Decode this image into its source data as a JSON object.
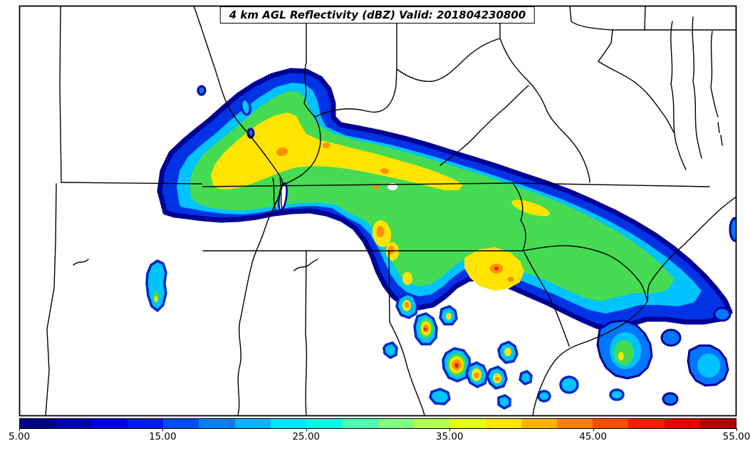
{
  "title": "4 km AGL Reflectivity (dBZ) Valid: 201804230800",
  "colorbar": {
    "min": 5.0,
    "max": 55.0,
    "units": "dBZ",
    "tick_labels": [
      "5.00",
      "15.00",
      "25.00",
      "35.00",
      "45.00",
      "55.00"
    ],
    "tick_positions": [
      0,
      0.2,
      0.4,
      0.6,
      0.8,
      1
    ],
    "segments": [
      "#000085",
      "#0000b3",
      "#0000e6",
      "#001aff",
      "#004dff",
      "#0080ff",
      "#00b3ff",
      "#00e6ff",
      "#00ffe6",
      "#4dffb3",
      "#80ff80",
      "#b3ff4d",
      "#e6ff1a",
      "#ffe600",
      "#ffb300",
      "#ff8000",
      "#ff4d00",
      "#ff1a00",
      "#e60000",
      "#b30000"
    ]
  },
  "map_palette": {
    "band_rim": "#000096",
    "band_blue": "#0033e6",
    "band_cyan": "#00c3ff",
    "band_green": "#46db52",
    "band_yellow": "#ffe400",
    "band_orange": "#ff9000",
    "band_red": "#e32400",
    "boundaries": "#000000"
  },
  "chart_data": {
    "type": "filled_contour_map",
    "title": "4 km AGL Reflectivity (dBZ) Valid: 201804230800",
    "variable": "Reflectivity",
    "units": "dBZ",
    "level": "4 km AGL",
    "valid_time": "201804230800",
    "colorbar_range": [
      5.0,
      55.0
    ],
    "colorbar_ticks": [
      5.0,
      15.0,
      25.0,
      35.0,
      45.0,
      55.0
    ],
    "legend_position": "bottom"
  }
}
